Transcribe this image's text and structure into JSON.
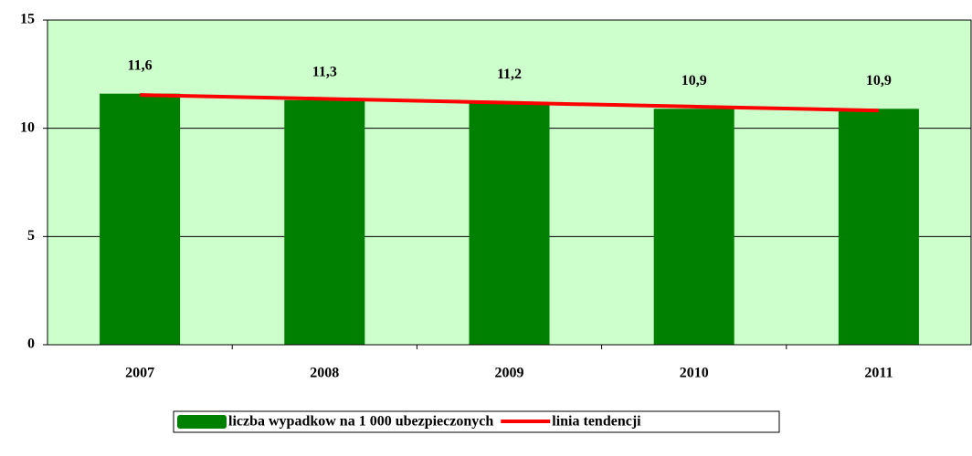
{
  "chart_data": {
    "type": "bar",
    "categories": [
      "2007",
      "2008",
      "2009",
      "2010",
      "2011"
    ],
    "series": [
      {
        "name": "liczba wypadkow na 1 000 ubezpieczonych",
        "type": "bar",
        "color": "#008000",
        "values": [
          11.6,
          11.3,
          11.2,
          10.9,
          10.9
        ],
        "value_labels": [
          "11,6",
          "11,3",
          "11,2",
          "10,9",
          "10,9"
        ]
      },
      {
        "name": "linia tendencji",
        "type": "line",
        "color": "#ff0000",
        "values": [
          11.54,
          11.36,
          11.18,
          11.0,
          10.82
        ]
      }
    ],
    "ylim": [
      0,
      15
    ],
    "yticks": [
      0,
      5,
      10,
      15
    ],
    "grid": true,
    "plot_background": "#ccffcc",
    "legend": "bottom"
  }
}
